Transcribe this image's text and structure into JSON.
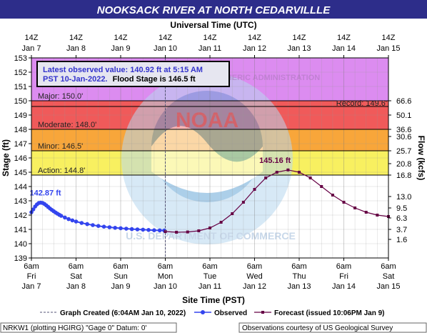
{
  "chart_data": {
    "type": "line",
    "title": "NOOKSACK RIVER AT NORTH CEDARVILLLE",
    "top_axis_title": "Universal Time (UTC)",
    "xlabel": "Site Time (PST)",
    "ylabel_left": "Stage (ft)",
    "ylabel_right": "Flow (kcfs)",
    "ylim": [
      139,
      153
    ],
    "y_ticks": [
      139,
      140,
      141,
      142,
      143,
      144,
      145,
      146,
      147,
      148,
      149,
      150,
      151,
      152,
      153
    ],
    "right_ticks": [
      {
        "stage": 140.3,
        "label": "1.6"
      },
      {
        "stage": 141.0,
        "label": "3.7"
      },
      {
        "stage": 141.8,
        "label": "6.3"
      },
      {
        "stage": 142.5,
        "label": "9.5"
      },
      {
        "stage": 143.3,
        "label": "13.0"
      },
      {
        "stage": 144.8,
        "label": "16.8"
      },
      {
        "stage": 145.6,
        "label": "20.8"
      },
      {
        "stage": 146.5,
        "label": "25.7"
      },
      {
        "stage": 147.5,
        "label": "30.6"
      },
      {
        "stage": 148.0,
        "label": "36.6"
      },
      {
        "stage": 149.0,
        "label": "50.1"
      },
      {
        "stage": 150.0,
        "label": "66.6"
      }
    ],
    "top_ticks": [
      {
        "l1": "14Z",
        "l2": "Jan 7"
      },
      {
        "l1": "14Z",
        "l2": "Jan 8"
      },
      {
        "l1": "14Z",
        "l2": "Jan 9"
      },
      {
        "l1": "14Z",
        "l2": "Jan 10"
      },
      {
        "l1": "14Z",
        "l2": "Jan 11"
      },
      {
        "l1": "14Z",
        "l2": "Jan 12"
      },
      {
        "l1": "14Z",
        "l2": "Jan 13"
      },
      {
        "l1": "14Z",
        "l2": "Jan 14"
      },
      {
        "l1": "14Z",
        "l2": "Jan 15"
      }
    ],
    "bottom_ticks": [
      {
        "l1": "6am",
        "l2": "Fri",
        "l3": "Jan 7"
      },
      {
        "l1": "6am",
        "l2": "Sat",
        "l3": "Jan 8"
      },
      {
        "l1": "6am",
        "l2": "Sun",
        "l3": "Jan 9"
      },
      {
        "l1": "6am",
        "l2": "Mon",
        "l3": "Jan 10"
      },
      {
        "l1": "6am",
        "l2": "Tue",
        "l3": "Jan 11"
      },
      {
        "l1": "6am",
        "l2": "Wed",
        "l3": "Jan 12"
      },
      {
        "l1": "6am",
        "l2": "Thu",
        "l3": "Jan 13"
      },
      {
        "l1": "6am",
        "l2": "Fri",
        "l3": "Jan 14"
      },
      {
        "l1": "6am",
        "l2": "Sat",
        "l3": "Jan 15"
      }
    ],
    "x_range_hours": [
      0,
      192
    ],
    "graph_created_hour": 72,
    "bands": [
      {
        "from": 150.0,
        "to": 153.0,
        "color": "#dc8cf0",
        "label": "Major: 150.0'"
      },
      {
        "from": 148.0,
        "to": 150.0,
        "color": "#f05a5a",
        "label": "Moderate: 148.0'"
      },
      {
        "from": 146.5,
        "to": 148.0,
        "color": "#f8a63a",
        "label": "Minor: 146.5'"
      },
      {
        "from": 144.8,
        "to": 146.5,
        "color": "#f8f060",
        "label": "Action: 144.8'"
      }
    ],
    "record": {
      "value": 149.6,
      "label": "Record: 149.6'"
    },
    "peak_labels": [
      {
        "label": "142.87 ft",
        "x": 7.5,
        "y": 142.87,
        "color": "#3344ee"
      },
      {
        "label": "145.16 ft",
        "x": 131,
        "y": 145.16,
        "color": "#660044"
      }
    ],
    "series": [
      {
        "name": "Observed",
        "color": "#3344ee",
        "x": [
          0,
          1,
          2,
          3,
          4,
          5,
          6,
          7,
          8,
          9,
          10,
          11,
          12,
          13,
          14,
          15,
          16,
          18,
          20,
          22,
          24,
          27,
          30,
          33,
          36,
          39,
          42,
          45,
          48,
          51,
          54,
          57,
          60,
          63,
          66,
          69,
          71.5
        ],
        "y": [
          142.2,
          142.4,
          142.6,
          142.75,
          142.85,
          142.87,
          142.85,
          142.78,
          142.68,
          142.57,
          142.46,
          142.36,
          142.27,
          142.18,
          142.1,
          142.02,
          141.95,
          141.83,
          141.72,
          141.63,
          141.55,
          141.45,
          141.37,
          141.3,
          141.24,
          141.19,
          141.15,
          141.11,
          141.08,
          141.05,
          141.02,
          141.0,
          140.98,
          140.96,
          140.94,
          140.93,
          140.92
        ]
      },
      {
        "name": "Forecast (issued 10:06PM Jan 9)",
        "color": "#660044",
        "x": [
          72,
          78,
          84,
          90,
          96,
          102,
          108,
          114,
          120,
          126,
          132,
          138,
          144,
          150,
          156,
          162,
          168,
          174,
          180,
          186,
          192
        ],
        "y": [
          140.85,
          140.8,
          140.82,
          140.9,
          141.1,
          141.5,
          142.1,
          142.9,
          143.8,
          144.6,
          145.0,
          145.16,
          145.0,
          144.6,
          144.0,
          143.4,
          142.9,
          142.5,
          142.2,
          142.0,
          141.9
        ]
      }
    ],
    "info_box": {
      "line1": "Latest observed value: 140.92 ft at 5:15 AM",
      "line2": "PST 10-Jan-2022.",
      "line2b": "Flood Stage is 146.5 ft"
    },
    "legend": {
      "graph_created": "Graph Created (6:04AM Jan 10, 2022)",
      "observed": "Observed",
      "forecast": "Forecast (issued 10:06PM Jan 9)"
    },
    "footer_left": "NRKW1 (plotting HGIRG) \"Gage 0\" Datum: 0'",
    "footer_right": "Observations courtesy of US Geological Survey",
    "watermark": {
      "center_text": "NOAA",
      "ring_text": "NATIONAL OCEANIC AND ATMOSPHERIC ADMINISTRATION",
      "bottom_ring_text": "U.S. DEPARTMENT OF COMMERCE"
    },
    "grid": true
  }
}
